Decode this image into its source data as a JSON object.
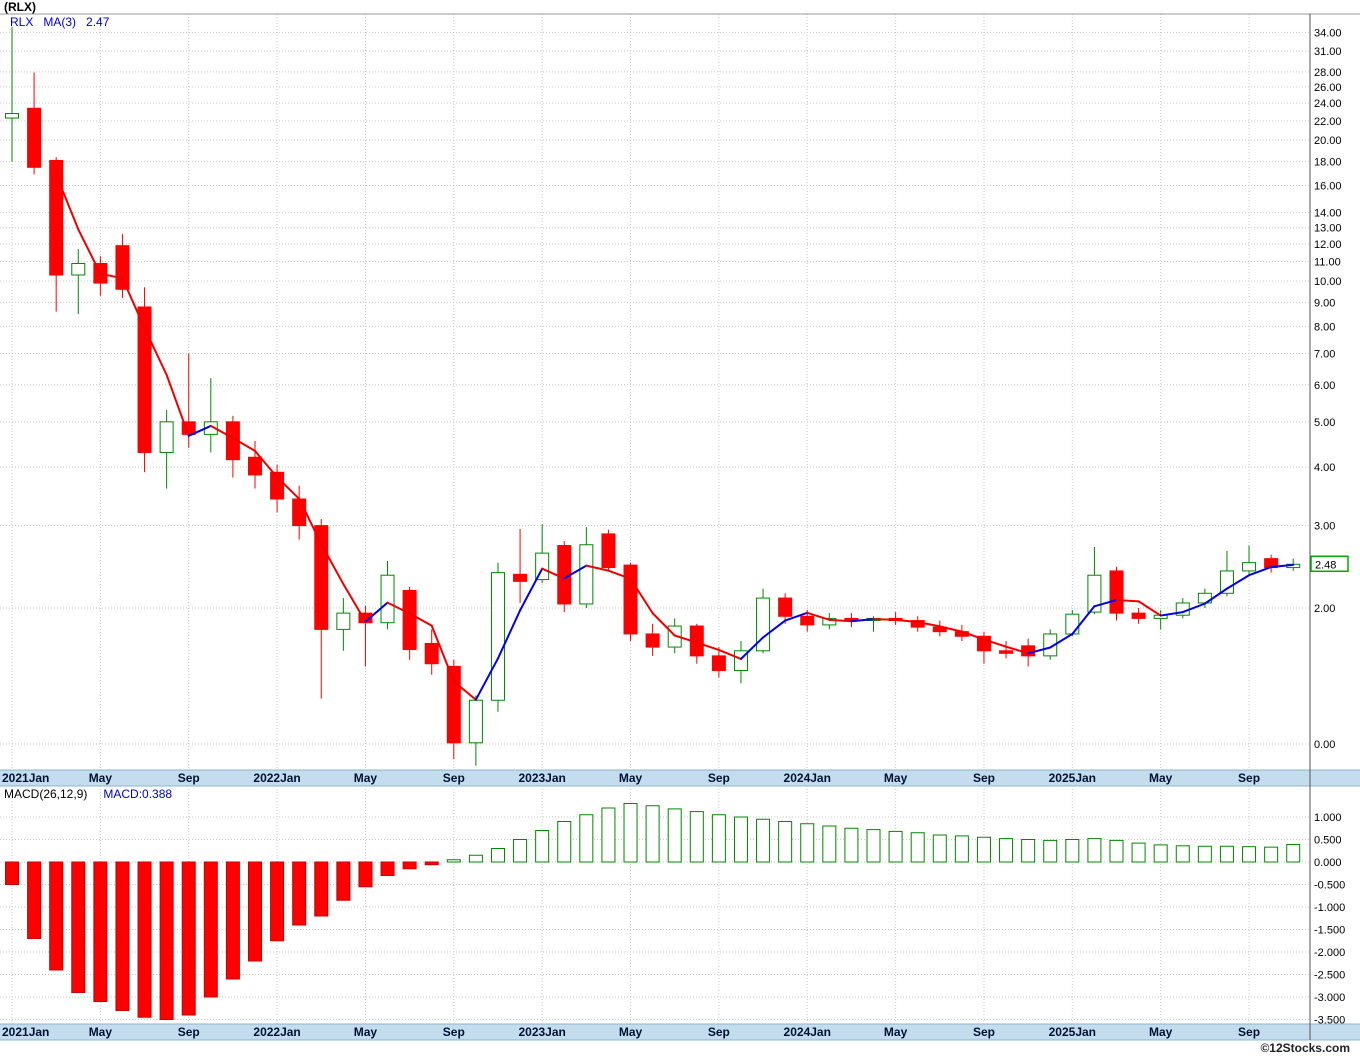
{
  "window": {
    "title": "(RLX)"
  },
  "legend": {
    "symbol": "RLX",
    "ma_label": "MA(3)",
    "ma_value": "2.47"
  },
  "price_axis": {
    "last_price_label": "2.48"
  },
  "macd_header": {
    "label": "MACD(26,12,9)",
    "value_label": "MACD:0.388"
  },
  "footer": {
    "copyright": "©12Stocks.com"
  },
  "colors": {
    "up": "#008800",
    "down": "#ff0000",
    "ma_up": "#0000ee",
    "ma_down": "#ee0000",
    "axis_strip": "#c3dcee",
    "strip_border": "#8fb4cc",
    "grid": "#c9c9c9",
    "label_blue": "#0000cc",
    "tag_border": "#00aa00"
  },
  "chart_data": [
    {
      "type": "candlestick",
      "title": "RLX monthly price",
      "scale": "log",
      "x_tick_labels": [
        "2021Jan",
        "May",
        "Sep",
        "2022Jan",
        "May",
        "Sep",
        "2023Jan",
        "May",
        "Sep",
        "2024Jan",
        "May",
        "Sep",
        "2025Jan",
        "May",
        "Sep"
      ],
      "x_tick_indices": [
        0,
        4,
        8,
        12,
        16,
        20,
        24,
        28,
        32,
        36,
        40,
        44,
        48,
        52,
        56
      ],
      "y_ticks": [
        34,
        31,
        28,
        26,
        24,
        22,
        20,
        18,
        16,
        14,
        13,
        12,
        11,
        10,
        9,
        8,
        7,
        6,
        5,
        4,
        3,
        2,
        0
      ],
      "ma_period": 3,
      "last_close": 2.48,
      "months": [
        "2021-01",
        "2021-02",
        "2021-03",
        "2021-04",
        "2021-05",
        "2021-06",
        "2021-07",
        "2021-08",
        "2021-09",
        "2021-10",
        "2021-11",
        "2021-12",
        "2022-01",
        "2022-02",
        "2022-03",
        "2022-04",
        "2022-05",
        "2022-06",
        "2022-07",
        "2022-08",
        "2022-09",
        "2022-10",
        "2022-11",
        "2022-12",
        "2023-01",
        "2023-02",
        "2023-03",
        "2023-04",
        "2023-05",
        "2023-06",
        "2023-07",
        "2023-08",
        "2023-09",
        "2023-10",
        "2023-11",
        "2023-12",
        "2024-01",
        "2024-02",
        "2024-03",
        "2024-04",
        "2024-05",
        "2024-06",
        "2024-07",
        "2024-08",
        "2024-09",
        "2024-10",
        "2024-11",
        "2024-12",
        "2025-01",
        "2025-02",
        "2025-03",
        "2025-04",
        "2025-05",
        "2025-06",
        "2025-07",
        "2025-08",
        "2025-09",
        "2025-10",
        "2025-11"
      ],
      "ohlc": [
        [
          22.3,
          34.9,
          18.0,
          22.8
        ],
        [
          23.4,
          27.9,
          16.9,
          17.5
        ],
        [
          18.1,
          18.4,
          8.6,
          10.3
        ],
        [
          10.3,
          11.7,
          8.5,
          10.9
        ],
        [
          10.9,
          11.3,
          9.3,
          9.9
        ],
        [
          11.9,
          12.6,
          9.2,
          9.6
        ],
        [
          8.8,
          9.7,
          3.9,
          4.3
        ],
        [
          4.3,
          5.3,
          3.6,
          5.0
        ],
        [
          5.0,
          7.0,
          4.4,
          4.7
        ],
        [
          4.7,
          6.2,
          4.3,
          5.0
        ],
        [
          5.0,
          5.15,
          3.8,
          4.15
        ],
        [
          4.2,
          4.55,
          3.6,
          3.85
        ],
        [
          3.9,
          4.05,
          3.2,
          3.42
        ],
        [
          3.42,
          3.65,
          2.8,
          3.0
        ],
        [
          3.0,
          3.1,
          1.28,
          1.8
        ],
        [
          1.8,
          2.1,
          1.62,
          1.95
        ],
        [
          1.95,
          2.02,
          1.5,
          1.86
        ],
        [
          1.86,
          2.52,
          1.8,
          2.35
        ],
        [
          2.18,
          2.22,
          1.55,
          1.63
        ],
        [
          1.68,
          1.8,
          1.44,
          1.52
        ],
        [
          1.5,
          1.55,
          0.95,
          1.03
        ],
        [
          1.03,
          1.3,
          0.92,
          1.27
        ],
        [
          1.27,
          2.5,
          1.2,
          2.38
        ],
        [
          2.36,
          2.95,
          2.05,
          2.28
        ],
        [
          2.3,
          3.02,
          2.26,
          2.62
        ],
        [
          2.72,
          2.78,
          1.96,
          2.04
        ],
        [
          2.04,
          2.98,
          2.0,
          2.73
        ],
        [
          2.88,
          2.94,
          2.4,
          2.44
        ],
        [
          2.47,
          2.5,
          1.7,
          1.76
        ],
        [
          1.76,
          1.85,
          1.58,
          1.65
        ],
        [
          1.65,
          1.9,
          1.6,
          1.83
        ],
        [
          1.83,
          1.85,
          1.52,
          1.58
        ],
        [
          1.58,
          1.65,
          1.42,
          1.47
        ],
        [
          1.47,
          1.7,
          1.38,
          1.62
        ],
        [
          1.62,
          2.2,
          1.6,
          2.1
        ],
        [
          2.1,
          2.15,
          1.85,
          1.92
        ],
        [
          1.92,
          1.98,
          1.78,
          1.84
        ],
        [
          1.84,
          1.95,
          1.8,
          1.9
        ],
        [
          1.9,
          1.95,
          1.82,
          1.88
        ],
        [
          1.88,
          1.92,
          1.78,
          1.9
        ],
        [
          1.9,
          1.96,
          1.84,
          1.88
        ],
        [
          1.88,
          1.92,
          1.78,
          1.82
        ],
        [
          1.82,
          1.88,
          1.74,
          1.78
        ],
        [
          1.78,
          1.84,
          1.7,
          1.74
        ],
        [
          1.74,
          1.78,
          1.52,
          1.62
        ],
        [
          1.62,
          1.7,
          1.56,
          1.6
        ],
        [
          1.66,
          1.72,
          1.5,
          1.58
        ],
        [
          1.58,
          1.8,
          1.55,
          1.76
        ],
        [
          1.76,
          1.98,
          1.74,
          1.94
        ],
        [
          1.96,
          2.7,
          1.94,
          2.35
        ],
        [
          2.4,
          2.45,
          1.88,
          1.95
        ],
        [
          1.95,
          2.0,
          1.85,
          1.9
        ],
        [
          1.9,
          1.98,
          1.8,
          1.93
        ],
        [
          1.93,
          2.1,
          1.9,
          2.05
        ],
        [
          2.05,
          2.2,
          2.0,
          2.15
        ],
        [
          2.15,
          2.65,
          2.12,
          2.4
        ],
        [
          2.4,
          2.72,
          2.35,
          2.5
        ],
        [
          2.55,
          2.6,
          2.38,
          2.44
        ],
        [
          2.44,
          2.55,
          2.4,
          2.48
        ]
      ]
    },
    {
      "type": "bar",
      "title": "MACD(26,12,9)",
      "y_ticks": [
        1.0,
        0.5,
        0.0,
        -0.5,
        -1.0,
        -1.5,
        -2.0,
        -2.5,
        -3.0,
        -3.5
      ],
      "last_value": 0.388,
      "values": [
        -0.5,
        -1.7,
        -2.4,
        -2.9,
        -3.1,
        -3.3,
        -3.45,
        -3.5,
        -3.4,
        -3.0,
        -2.6,
        -2.2,
        -1.75,
        -1.4,
        -1.2,
        -0.85,
        -0.55,
        -0.3,
        -0.15,
        -0.06,
        0.05,
        0.15,
        0.3,
        0.5,
        0.7,
        0.9,
        1.05,
        1.2,
        1.3,
        1.25,
        1.18,
        1.12,
        1.05,
        1.0,
        0.95,
        0.9,
        0.85,
        0.8,
        0.75,
        0.72,
        0.68,
        0.65,
        0.6,
        0.58,
        0.55,
        0.52,
        0.5,
        0.48,
        0.5,
        0.52,
        0.48,
        0.42,
        0.38,
        0.36,
        0.35,
        0.35,
        0.34,
        0.33,
        0.388
      ]
    }
  ]
}
